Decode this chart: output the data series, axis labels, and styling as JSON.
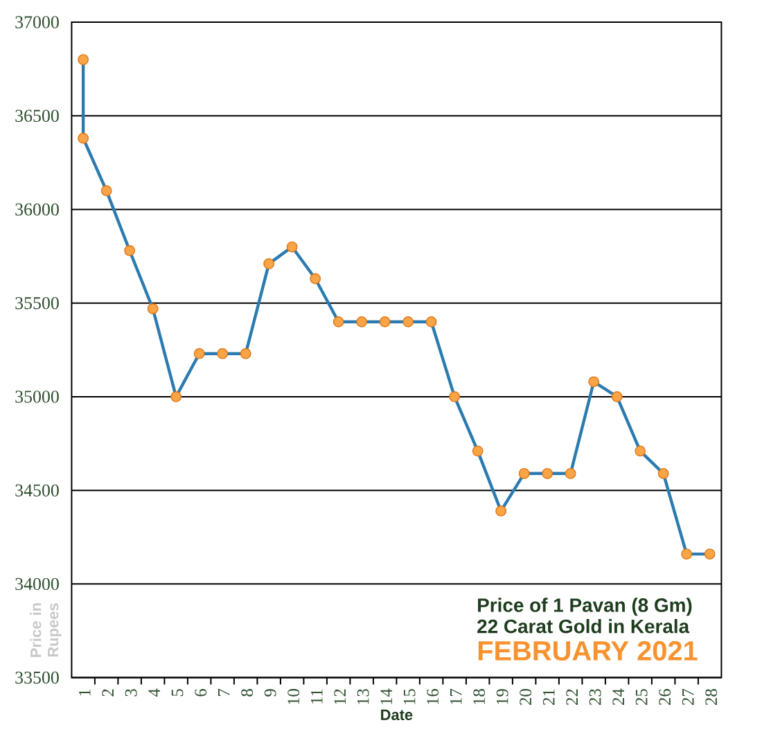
{
  "chart_data": {
    "type": "line",
    "title": "Price of 1 Pavan (8 Gm)",
    "subtitle": "22 Carat Gold in Kerala",
    "annotations": [
      "FEBRUARY 2021"
    ],
    "xlabel": "Date",
    "ylabel": "Price in Rupees",
    "x": [
      1,
      1,
      2,
      3,
      4,
      5,
      6,
      7,
      8,
      9,
      10,
      11,
      12,
      13,
      14,
      15,
      16,
      17,
      18,
      19,
      20,
      21,
      22,
      23,
      24,
      25,
      26,
      27,
      28
    ],
    "values": [
      36800,
      36380,
      36100,
      35780,
      35470,
      35000,
      35230,
      35230,
      35230,
      35710,
      35800,
      35630,
      35400,
      35400,
      35400,
      35400,
      35400,
      35000,
      34710,
      34390,
      34590,
      34590,
      34590,
      35080,
      35000,
      34710,
      34590,
      34160,
      34160
    ],
    "color": "#2b7bb0",
    "marker": "circle",
    "line_style": "solid",
    "xlim": [
      0.5,
      28.5
    ],
    "xticks": [
      1,
      2,
      3,
      4,
      5,
      6,
      7,
      8,
      9,
      10,
      11,
      12,
      13,
      14,
      15,
      16,
      17,
      18,
      19,
      20,
      21,
      22,
      23,
      24,
      25,
      26,
      27,
      28
    ],
    "ylim": [
      33500,
      37000
    ],
    "yticks": [
      33500,
      34000,
      34500,
      35000,
      35500,
      36000,
      36500,
      37000
    ],
    "grid": "y"
  }
}
